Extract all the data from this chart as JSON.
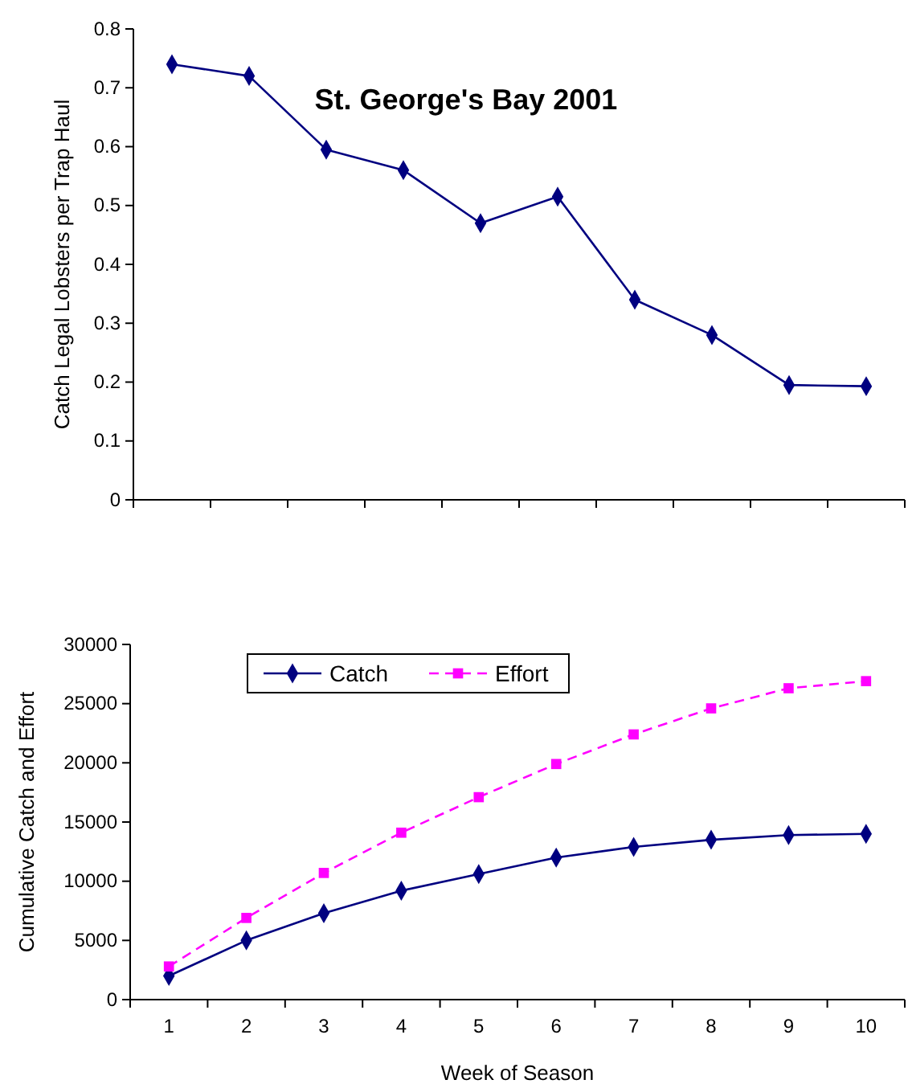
{
  "chart_data": [
    {
      "type": "line",
      "title": "St. George's Bay 2001",
      "ylabel": "Catch Legal Lobsters per Trap Haul",
      "categories": [
        null,
        null,
        null,
        null,
        null,
        null,
        null,
        null,
        null,
        null
      ],
      "series": [
        {
          "color": "#000080",
          "values": [
            0.74,
            0.72,
            0.595,
            0.56,
            0.47,
            0.515,
            0.34,
            0.28,
            0.195,
            0.193
          ]
        }
      ],
      "ylim": [
        0,
        0.8
      ],
      "yticks": [
        0,
        0.1,
        0.2,
        0.3,
        0.4,
        0.5,
        0.6,
        0.7,
        0.8
      ],
      "tick_labels": "y",
      "marker": "diamond",
      "grid": false,
      "legend": false
    },
    {
      "type": "line",
      "xlabel": "Week of Season",
      "ylabel": "Cumulative Catch and Effort",
      "categories": [
        "1",
        "2",
        "3",
        "4",
        "5",
        "6",
        "7",
        "8",
        "9",
        "10"
      ],
      "series": [
        {
          "name": "Catch",
          "color": "#000080",
          "marker": "diamond",
          "line_style": "solid",
          "values": [
            2000,
            5000,
            7300,
            9200,
            10600,
            12000,
            12900,
            13500,
            13900,
            14000
          ]
        },
        {
          "name": "Effort",
          "color": "#ff00ff",
          "marker": "square",
          "line_style": "dashed",
          "values": [
            2800,
            6900,
            10700,
            14100,
            17100,
            19900,
            22400,
            24600,
            26300,
            26900
          ]
        }
      ],
      "ylim": [
        0,
        30000
      ],
      "yticks": [
        0,
        5000,
        10000,
        15000,
        20000,
        25000,
        30000
      ],
      "grid": false,
      "legend": "top left"
    }
  ]
}
